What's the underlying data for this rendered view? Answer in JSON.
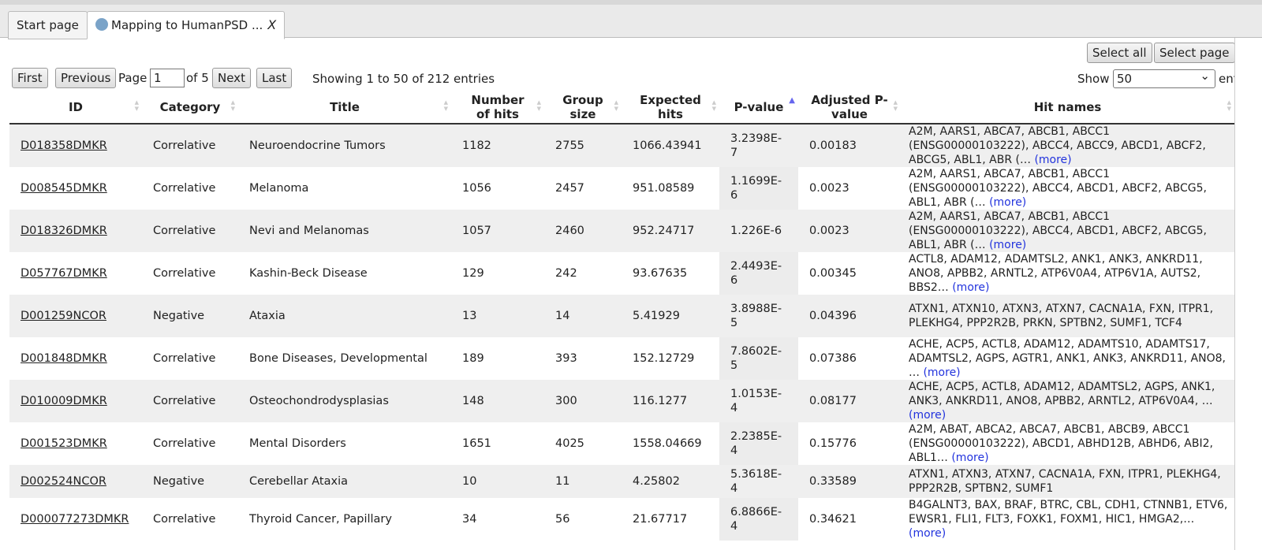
{
  "tabs": {
    "start": "Start page",
    "active": "Mapping to HumanPSD ...",
    "close": "X"
  },
  "toolbar": {
    "select_all": "Select all",
    "select_page": "Select page"
  },
  "pager": {
    "first": "First",
    "previous": "Previous",
    "page": "Page",
    "page_value": "1",
    "of": "of 5",
    "next": "Next",
    "last": "Last",
    "info": "Showing 1 to 50 of 212 entries",
    "show": "Show",
    "show_value": "50",
    "entries": "entries"
  },
  "table": {
    "headers": [
      "ID",
      "Category",
      "Title",
      "Number of hits",
      "Group size",
      "Expected hits",
      "P-value",
      "Adjusted P-value",
      "Hit names"
    ],
    "rows": [
      {
        "cells": [
          "D018358DMKR",
          "Correlative",
          "Neuroendocrine Tumors",
          "1182",
          "2755",
          "1066.43941",
          "3.2398E-7",
          "0.00183"
        ],
        "hits": "A2M, AARS1, ABCA7, ABCB1, ABCC1 (ENSG00000103222), ABCC4, ABCC9, ABCD1, ABCF2, ABCG5, ABL1, ABR (…",
        "more": "(more)"
      },
      {
        "cells": [
          "D008545DMKR",
          "Correlative",
          "Melanoma",
          "1056",
          "2457",
          "951.08589",
          "1.1699E-6",
          "0.0023"
        ],
        "hits": "A2M, AARS1, ABCA7, ABCB1, ABCC1 (ENSG00000103222), ABCC4, ABCD1, ABCF2, ABCG5, ABL1, ABR (…",
        "more": "(more)"
      },
      {
        "cells": [
          "D018326DMKR",
          "Correlative",
          "Nevi and Melanomas",
          "1057",
          "2460",
          "952.24717",
          "1.226E-6",
          "0.0023"
        ],
        "hits": "A2M, AARS1, ABCA7, ABCB1, ABCC1 (ENSG00000103222), ABCC4, ABCD1, ABCF2, ABCG5, ABL1, ABR (…",
        "more": "(more)"
      },
      {
        "cells": [
          "D057767DMKR",
          "Correlative",
          "Kashin-Beck Disease",
          "129",
          "242",
          "93.67635",
          "2.4493E-6",
          "0.00345"
        ],
        "hits": "ACTL8, ADAM12, ADAMTSL2, ANK1, ANK3, ANKRD11, ANO8, APBB2, ARNTL2, ATP6V0A4, ATP6V1A, AUTS2, BBS2…",
        "more": "(more)"
      },
      {
        "cells": [
          "D001259NCOR",
          "Negative",
          "Ataxia",
          "13",
          "14",
          "5.41929",
          "3.8988E-5",
          "0.04396"
        ],
        "hits": "ATXN1, ATXN10, ATXN3, ATXN7, CACNA1A, FXN, ITPR1, PLEKHG4, PPP2R2B, PRKN, SPTBN2, SUMF1, TCF4"
      },
      {
        "cells": [
          "D001848DMKR",
          "Correlative",
          "Bone Diseases, Developmental",
          "189",
          "393",
          "152.12729",
          "7.8602E-5",
          "0.07386"
        ],
        "hits": "ACHE, ACP5, ACTL8, ADAM12, ADAMTS10, ADAMTS17, ADAMTSL2, AGPS, AGTR1, ANK1, ANK3, ANKRD11, ANO8, …",
        "more": "(more)"
      },
      {
        "cells": [
          "D010009DMKR",
          "Correlative",
          "Osteochondrodysplasias",
          "148",
          "300",
          "116.1277",
          "1.0153E-4",
          "0.08177"
        ],
        "hits": "ACHE, ACP5, ACTL8, ADAM12, ADAMTSL2, AGPS, ANK1, ANK3, ANKRD11, ANO8, APBB2, ARNTL2, ATP6V0A4, …",
        "more": "(more)"
      },
      {
        "cells": [
          "D001523DMKR",
          "Correlative",
          "Mental Disorders",
          "1651",
          "4025",
          "1558.04669",
          "2.2385E-4",
          "0.15776"
        ],
        "hits": "A2M, ABAT, ABCA2, ABCA7, ABCB1, ABCB9, ABCC1 (ENSG00000103222), ABCD1, ABHD12B, ABHD6, ABI2, ABL1…",
        "more": "(more)"
      },
      {
        "cells": [
          "D002524NCOR",
          "Negative",
          "Cerebellar Ataxia",
          "10",
          "11",
          "4.25802",
          "5.3618E-4",
          "0.33589"
        ],
        "hits": "ATXN1, ATXN3, ATXN7, CACNA1A, FXN, ITPR1, PLEKHG4, PPP2R2B, SPTBN2, SUMF1"
      },
      {
        "cells": [
          "D000077273DMKR",
          "Correlative",
          "Thyroid Cancer, Papillary",
          "34",
          "56",
          "21.67717",
          "6.8866E-4",
          "0.34621"
        ],
        "hits": "B4GALNT3, BAX, BRAF, BTRC, CBL, CDH1, CTNNB1, ETV6, EWSR1, FLI1, FLT3, FOXK1, FOXM1, HIC1, HMGA2,…",
        "more": "(more)"
      }
    ]
  }
}
